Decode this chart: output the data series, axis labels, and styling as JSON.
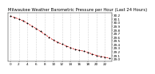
{
  "title": "Milwaukee Weather Barometric Pressure per Hour (Last 24 Hours)",
  "hours": [
    0,
    1,
    2,
    3,
    4,
    5,
    6,
    7,
    8,
    9,
    10,
    11,
    12,
    13,
    14,
    15,
    16,
    17,
    18,
    19,
    20,
    21,
    22,
    23
  ],
  "pressure": [
    30.18,
    30.14,
    30.1,
    30.05,
    29.98,
    29.91,
    29.84,
    29.76,
    29.68,
    29.6,
    29.52,
    29.46,
    29.41,
    29.36,
    29.31,
    29.27,
    29.24,
    29.22,
    29.18,
    29.14,
    29.1,
    29.07,
    29.05,
    29.02
  ],
  "line_color": "#dd0000",
  "marker_color": "#000000",
  "bg_color": "#ffffff",
  "grid_color": "#999999",
  "title_fontsize": 3.8,
  "tick_fontsize": 3.0,
  "ylim": [
    28.95,
    30.28
  ],
  "yticks": [
    29.0,
    29.1,
    29.2,
    29.3,
    29.4,
    29.5,
    29.6,
    29.7,
    29.8,
    29.9,
    30.0,
    30.1,
    30.2
  ],
  "xtick_step": 2
}
